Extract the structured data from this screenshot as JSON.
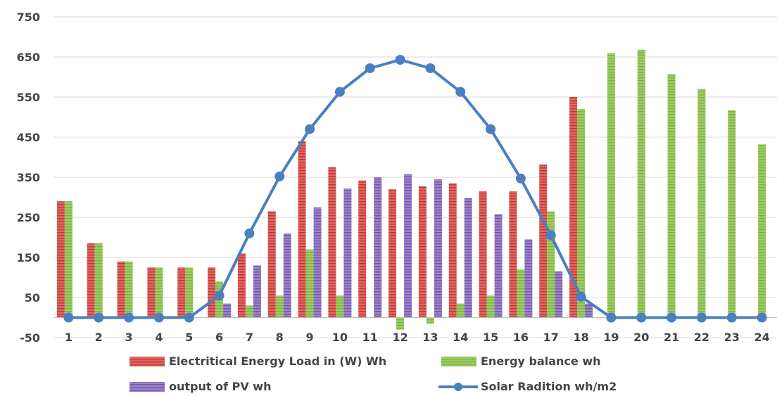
{
  "chart_data": {
    "type": "bar",
    "categories": [
      "1",
      "2",
      "3",
      "4",
      "5",
      "6",
      "7",
      "8",
      "9",
      "10",
      "11",
      "12",
      "13",
      "14",
      "15",
      "16",
      "17",
      "18",
      "19",
      "20",
      "21",
      "22",
      "23",
      "24"
    ],
    "ylim": [
      -50,
      750
    ],
    "yticks": [
      "-50",
      "50",
      "150",
      "250",
      "350",
      "450",
      "550",
      "650",
      "750"
    ],
    "grid": true,
    "legend_position": "bottom",
    "series": [
      {
        "name": "Electritical Energy Load in (W) Wh",
        "kind": "bar",
        "color": "#d9534f",
        "values": [
          290,
          185,
          140,
          125,
          125,
          125,
          160,
          265,
          440,
          375,
          342,
          320,
          328,
          335,
          315,
          315,
          382,
          550,
          0,
          0,
          0,
          0,
          0,
          0
        ]
      },
      {
        "name": "Energy balance wh",
        "kind": "bar",
        "color": "#8fc04a",
        "values": [
          290,
          185,
          140,
          125,
          125,
          90,
          30,
          55,
          170,
          55,
          0,
          -30,
          -15,
          35,
          55,
          120,
          265,
          520,
          660,
          668,
          607,
          570,
          517,
          432
        ]
      },
      {
        "name": "output of PV wh",
        "kind": "bar",
        "color": "#8b6fb8",
        "values": [
          0,
          0,
          0,
          0,
          0,
          35,
          130,
          210,
          275,
          322,
          350,
          358,
          345,
          298,
          258,
          195,
          115,
          35,
          0,
          0,
          0,
          0,
          0,
          0
        ]
      },
      {
        "name": "Solar Radition wh/m2",
        "kind": "line",
        "color": "#4a7fc0",
        "values": [
          0,
          0,
          0,
          0,
          0,
          55,
          210,
          352,
          470,
          563,
          622,
          643,
          622,
          563,
          470,
          347,
          205,
          52,
          0,
          0,
          0,
          0,
          0,
          0
        ]
      }
    ]
  }
}
